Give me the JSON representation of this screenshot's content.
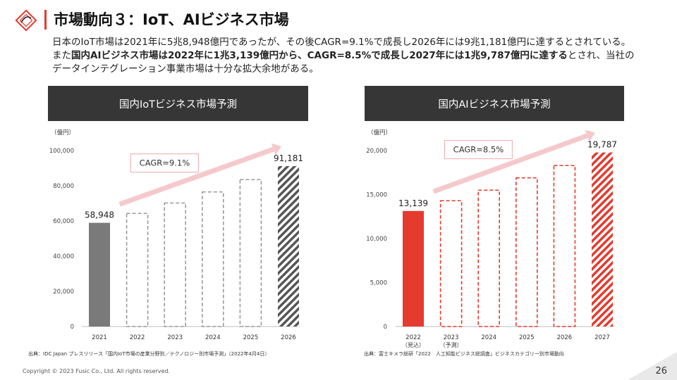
{
  "header": {
    "title": "市場動向３：IoT、AIビジネス市場",
    "intro_1": "日本のIoT市場は2021年に5兆8,948億円であったが、その後CAGR=9.1%で成長し2026年には9兆1,181億円に達するとされている。また",
    "intro_bold_1": "国内AIビジネス市場は2022年に1兆3,139億円から、CAGR=8.5%で成長し2027年には1兆9,787億円に達する",
    "intro_2": "とされ、当社のデータインテグレーション事業市場は十分な拡大余地がある。"
  },
  "iot_panel": {
    "heading": "国内IoTビジネス市場予測",
    "source": "出典：IDC Japan プレスリリース「国内IoT市場の産業分野別／テクノロジー別市場予測」（2022年4月4日）"
  },
  "ai_panel": {
    "heading": "国内AIビジネス市場予測",
    "source": "出典：富士キメラ総研「2022　人工知能ビジネス総調査」ビジネスカテゴリー別市場動向"
  },
  "footer": {
    "copyright": "Copyright © 2023 Fusic Co., Ltd. All rights reserved.",
    "page_number": "26"
  },
  "colors": {
    "accent": "#e53a2e",
    "iot_bar": "#7a7a7a",
    "iot_dash": "#9a9a9a",
    "ai_bar": "#e53a2e",
    "header_bg": "#363636",
    "arrow": "#f5c9cc"
  },
  "chart_data": [
    {
      "type": "bar",
      "title": "国内IoTビジネス市場予測",
      "ylabel": "（億円）",
      "categories": [
        "2021",
        "2022",
        "2023",
        "2024",
        "2025",
        "2026"
      ],
      "values": [
        58948,
        64300,
        70200,
        76500,
        83500,
        91181
      ],
      "styles": [
        "solid",
        "dashed",
        "dashed",
        "dashed",
        "dashed",
        "hatched"
      ],
      "ylim": [
        0,
        100000
      ],
      "yticks": [
        0,
        20000,
        40000,
        60000,
        80000,
        100000
      ],
      "ytick_labels": [
        "0",
        "20,000",
        "40,000",
        "60,000",
        "80,000",
        "100,000"
      ],
      "data_labels": {
        "0": "58,948",
        "5": "91,181"
      },
      "annotation": "CAGR=9.1%"
    },
    {
      "type": "bar",
      "title": "国内AIビジネス市場予測",
      "ylabel": "（億円）",
      "categories": [
        "2022",
        "2023",
        "2024",
        "2025",
        "2026",
        "2027"
      ],
      "category_sublabels": [
        "（見込）",
        "（予測）",
        "",
        "",
        "",
        ""
      ],
      "values": [
        13139,
        14300,
        15500,
        16900,
        18300,
        19787
      ],
      "styles": [
        "solid",
        "dashed",
        "dashed",
        "dashed",
        "dashed",
        "hatched"
      ],
      "ylim": [
        0,
        20000
      ],
      "yticks": [
        0,
        5000,
        10000,
        15000,
        20000
      ],
      "ytick_labels": [
        "0",
        "5,000",
        "10,000",
        "15,000",
        "20,000"
      ],
      "data_labels": {
        "0": "13,139",
        "5": "19,787"
      },
      "annotation": "CAGR=8.5%"
    }
  ]
}
